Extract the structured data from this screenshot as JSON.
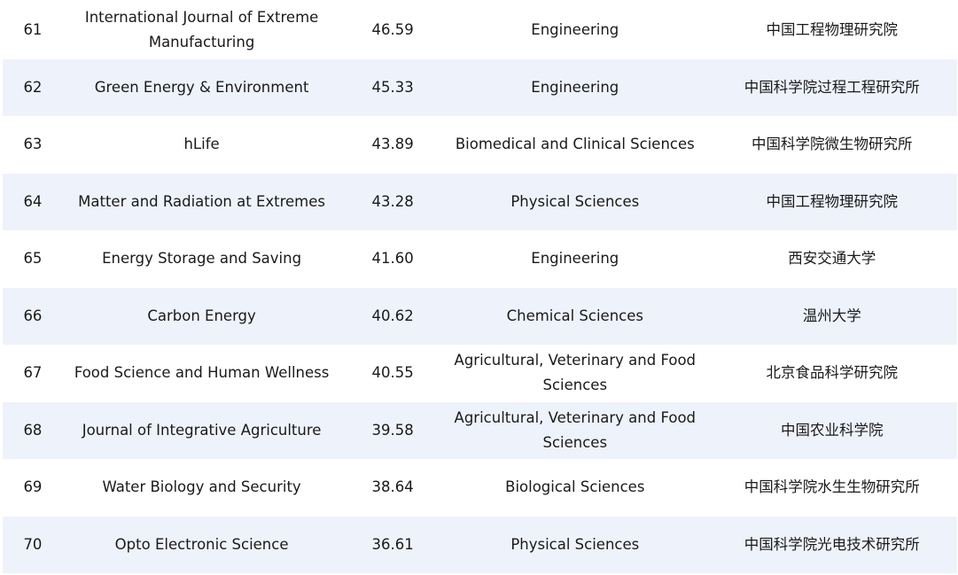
{
  "table": {
    "rows": [
      {
        "rank": "61",
        "name": "International Journal of Extreme Manufacturing",
        "score": "46.59",
        "field": "Engineering",
        "institution": "中国工程物理研究院"
      },
      {
        "rank": "62",
        "name": "Green Energy & Environment",
        "score": "45.33",
        "field": "Engineering",
        "institution": "中国科学院过程工程研究所"
      },
      {
        "rank": "63",
        "name": "hLife",
        "score": "43.89",
        "field": "Biomedical and Clinical Sciences",
        "institution": "中国科学院微生物研究所"
      },
      {
        "rank": "64",
        "name": "Matter and Radiation at Extremes",
        "score": "43.28",
        "field": "Physical Sciences",
        "institution": "中国工程物理研究院"
      },
      {
        "rank": "65",
        "name": "Energy Storage and Saving",
        "score": "41.60",
        "field": "Engineering",
        "institution": "西安交通大学"
      },
      {
        "rank": "66",
        "name": "Carbon Energy",
        "score": "40.62",
        "field": "Chemical Sciences",
        "institution": "温州大学"
      },
      {
        "rank": "67",
        "name": "Food Science and Human Wellness",
        "score": "40.55",
        "field": "Agricultural, Veterinary and Food Sciences",
        "institution": "北京食品科学研究院"
      },
      {
        "rank": "68",
        "name": "Journal of Integrative Agriculture",
        "score": "39.58",
        "field": "Agricultural, Veterinary and Food Sciences",
        "institution": "中国农业科学院"
      },
      {
        "rank": "69",
        "name": "Water Biology and Security",
        "score": "38.64",
        "field": "Biological Sciences",
        "institution": "中国科学院水生生物研究所"
      },
      {
        "rank": "70",
        "name": "Opto Electronic Science",
        "score": "36.61",
        "field": "Physical Sciences",
        "institution": "中国科学院光电技术研究所"
      }
    ]
  }
}
